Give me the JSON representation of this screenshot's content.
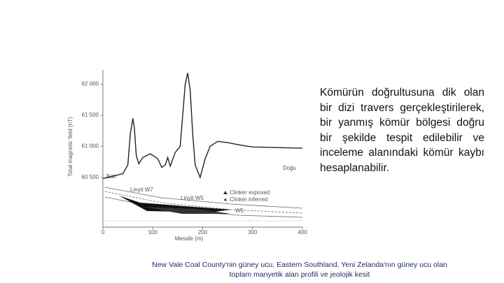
{
  "chart_data": {
    "type": "line",
    "y_label": "Total magnetic field (nT)",
    "x_label": "Mesafe (m)",
    "xlim": [
      0,
      400
    ],
    "xticks": [
      0,
      100,
      200,
      300,
      400
    ],
    "ylim": [
      59700,
      62230
    ],
    "yticks": [
      {
        "value": 60500,
        "label": "60 500"
      },
      {
        "value": 61000,
        "label": "61 000"
      },
      {
        "value": 61500,
        "label": "61 500"
      },
      {
        "value": 62000,
        "label": "62 000"
      }
    ],
    "x": [
      0,
      20,
      40,
      50,
      55,
      60,
      63,
      67,
      72,
      80,
      95,
      110,
      118,
      125,
      130,
      135,
      145,
      155,
      160,
      165,
      170,
      175,
      180,
      185,
      195,
      205,
      215,
      230,
      250,
      275,
      300,
      350,
      400
    ],
    "values": [
      60480,
      60520,
      60560,
      60700,
      61200,
      61450,
      61300,
      60850,
      60720,
      60820,
      60880,
      60800,
      60660,
      60700,
      60820,
      60680,
      60900,
      61000,
      61500,
      62000,
      62180,
      61900,
      61200,
      60700,
      60500,
      60800,
      61000,
      61080,
      61060,
      61020,
      60990,
      60980,
      60970
    ],
    "color": "#222222",
    "annotations": [
      "Batı",
      "Doğu",
      "Linyit W7",
      "Linyit W5",
      "W5",
      "Clinker exposed",
      "Clinker inferred"
    ]
  },
  "paragraph": "Kömürün doğrultusuna dik olan bir dizi travers gerçekleştirilerek, bir yanmış kömür bölgesi doğru bir şekilde tespit edilebilir ve inceleme alanındaki kömür kaybı hesaplanabilir.",
  "caption": [
    "New Vale Coal County'nin güney ucu, Eastern Southland, Yeni Zelanda'nın güney ucu olan",
    "toplam manyetik alan profili ve jeolojik kesit"
  ]
}
